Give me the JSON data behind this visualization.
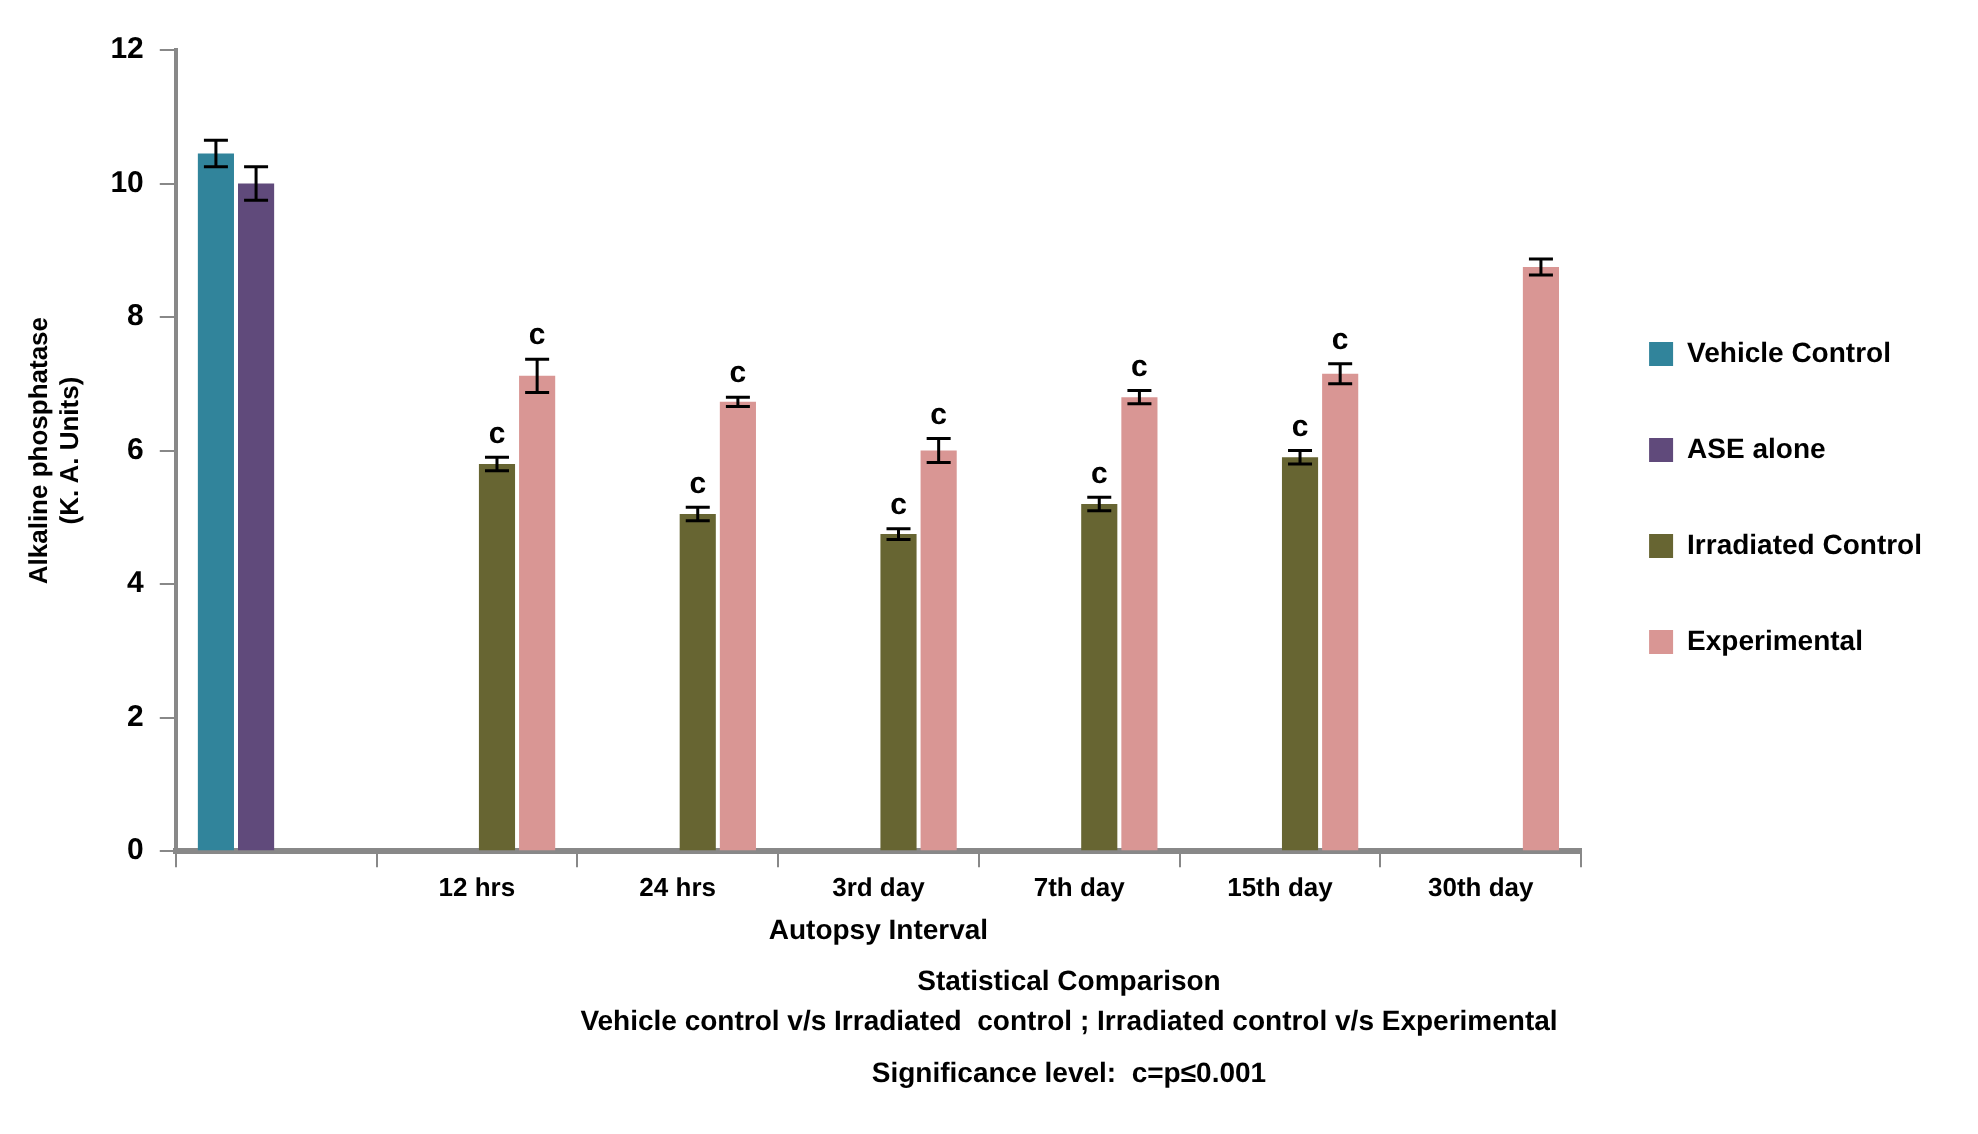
{
  "chart_data": {
    "type": "bar",
    "ylabel": "Alkaline phosphatase\n(K. A. Units)",
    "xlabel": "Autopsy Interval",
    "categories": [
      null,
      "12 hrs",
      "24 hrs",
      "3rd day",
      "7th day",
      "15th day",
      "30th day"
    ],
    "series": [
      {
        "name": "Vehicle Control",
        "color": "#31849b",
        "values": [
          10.45,
          null,
          null,
          null,
          null,
          null,
          null
        ],
        "errors": [
          0.2,
          null,
          null,
          null,
          null,
          null,
          null
        ]
      },
      {
        "name": "ASE alone",
        "color": "#604a7b",
        "values": [
          10.0,
          null,
          null,
          null,
          null,
          null,
          null
        ],
        "errors": [
          0.25,
          null,
          null,
          null,
          null,
          null,
          null
        ]
      },
      {
        "name": "Irradiated Control",
        "color": "#676532",
        "values": [
          null,
          5.8,
          5.05,
          4.75,
          5.2,
          5.9,
          null
        ],
        "errors": [
          null,
          0.1,
          0.1,
          0.08,
          0.1,
          0.1,
          null
        ],
        "value_labels": [
          null,
          "c",
          "c",
          "c",
          "c",
          "c",
          null
        ]
      },
      {
        "name": "Experimental",
        "color": "#d99694",
        "values": [
          null,
          7.12,
          6.73,
          6.0,
          6.8,
          7.15,
          8.75
        ],
        "errors": [
          null,
          0.25,
          0.07,
          0.18,
          0.1,
          0.15,
          0.12
        ],
        "value_labels": [
          null,
          "c",
          "c",
          "c",
          "c",
          "c",
          null
        ]
      }
    ],
    "ylim": [
      0,
      12
    ],
    "yticks": [
      0,
      2,
      4,
      6,
      8,
      10,
      12
    ],
    "grid": false,
    "legend": "right",
    "annotations": [
      "Statistical Comparison",
      "Vehicle control v/s Irradiated  control ; Irradiated control v/s Experimental",
      "Significance level:  c=p≤0.001"
    ]
  }
}
